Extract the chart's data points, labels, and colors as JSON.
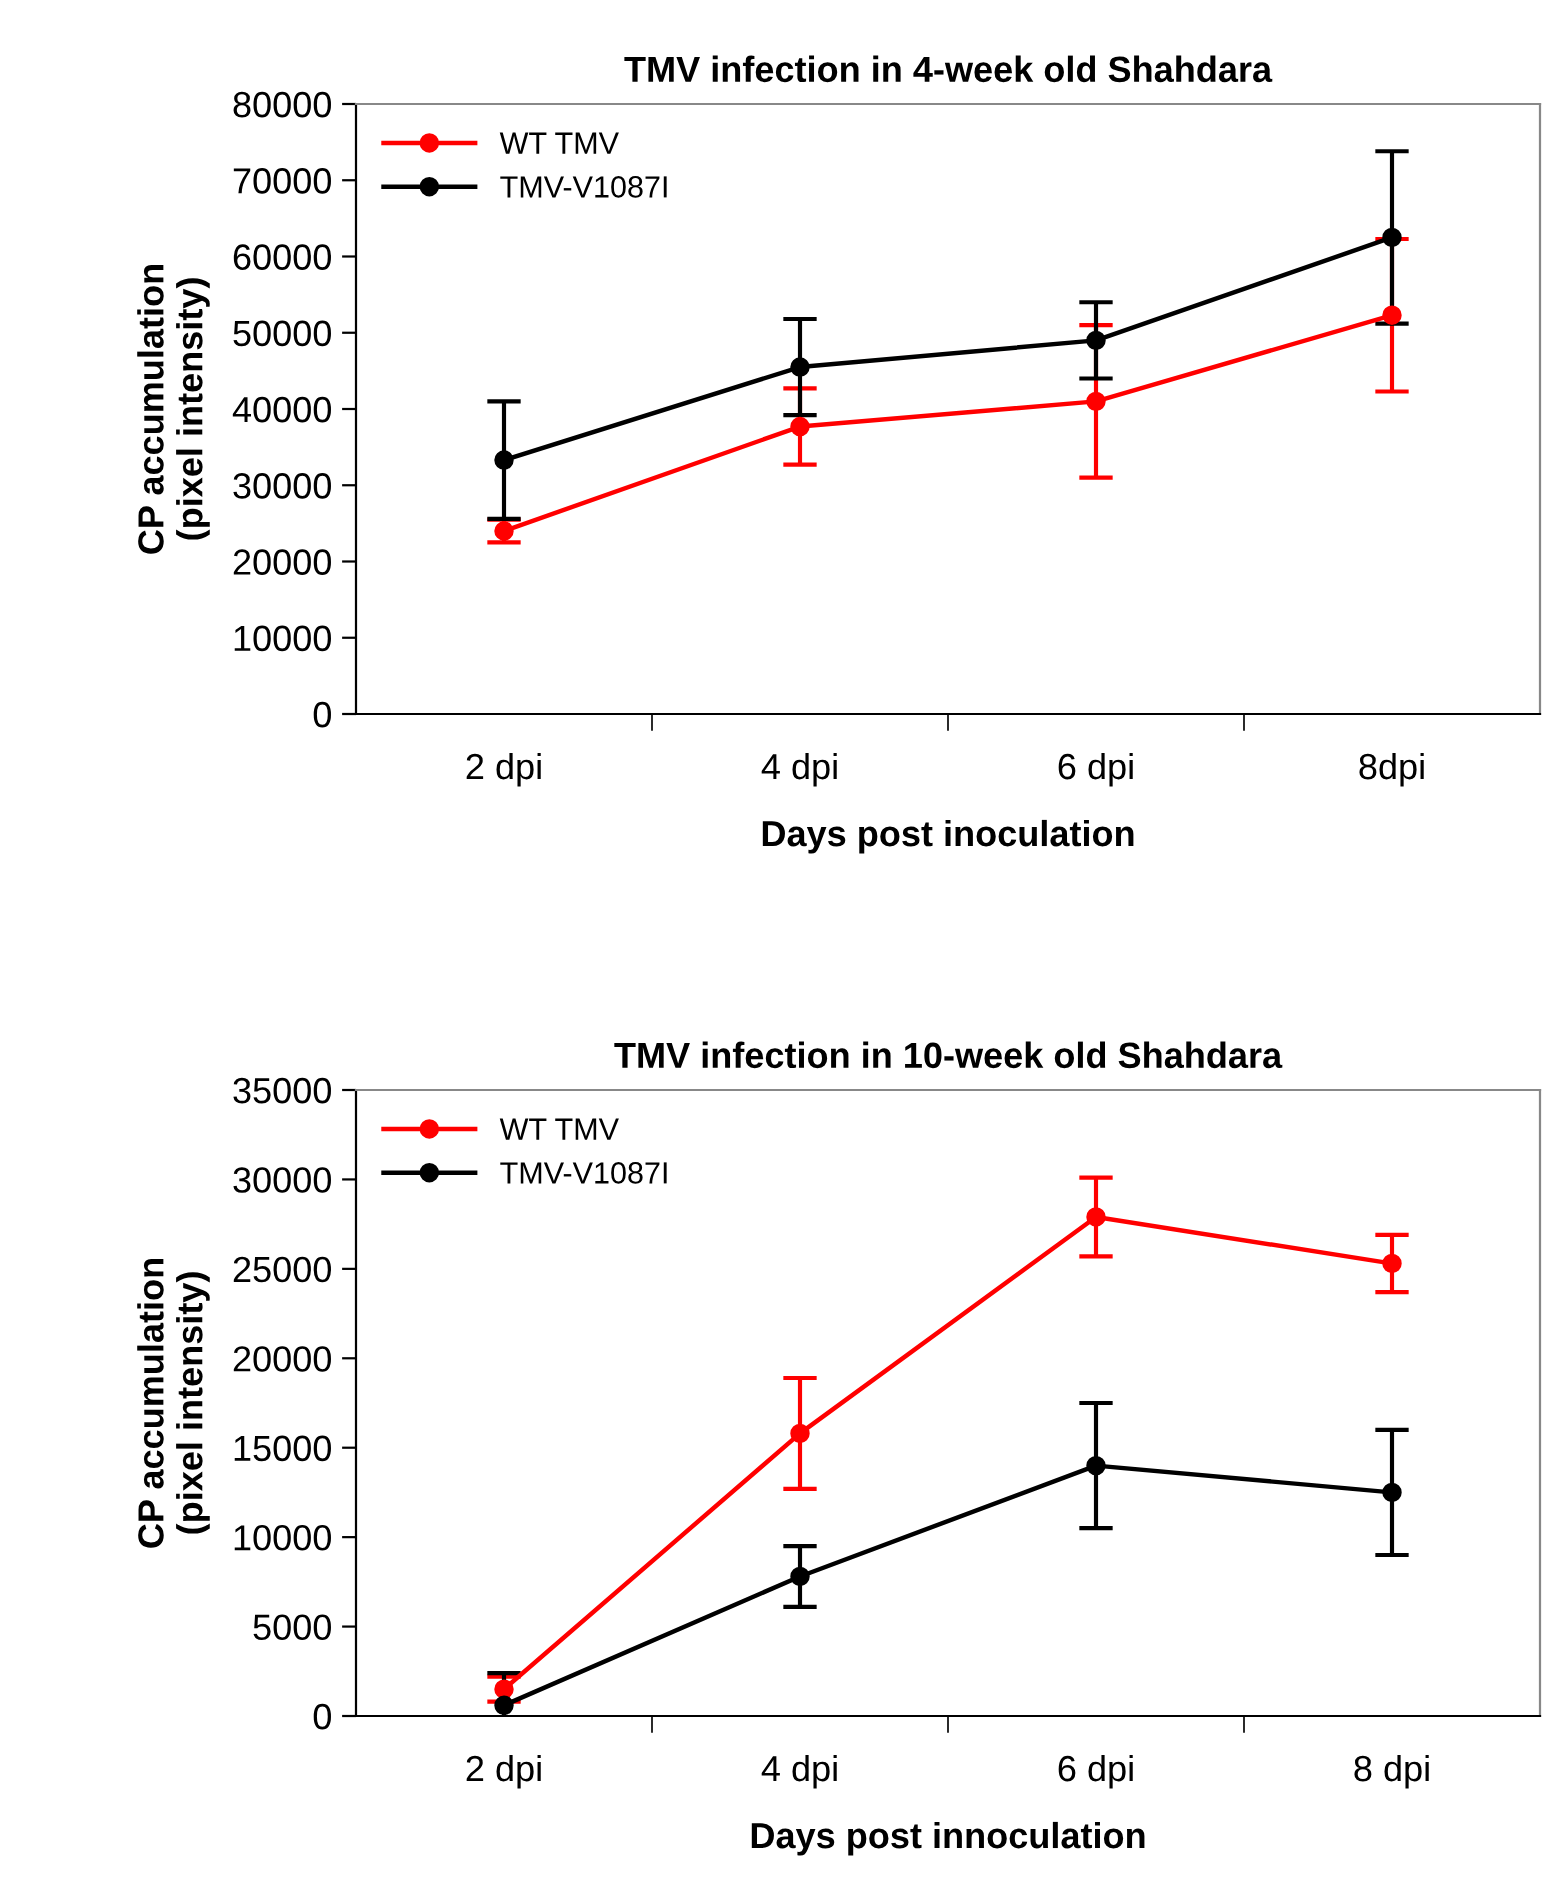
{
  "chart_data": [
    {
      "type": "line",
      "title": "TMV infection in 4-week old Shahdara",
      "xlabel": "Days post inoculation",
      "ylabel": "CP accumulation\n(pixel intensity)",
      "categories": [
        "2 dpi",
        "4 dpi",
        "6 dpi",
        "8dpi"
      ],
      "ylim": [
        0,
        80000
      ],
      "yticks": [
        0,
        10000,
        20000,
        30000,
        40000,
        50000,
        60000,
        70000,
        80000
      ],
      "marker": "circle",
      "legend": "top left",
      "grid": false,
      "series": [
        {
          "name": "WT TMV",
          "color": "#ff0000",
          "values": [
            24000,
            37700,
            41000,
            52300
          ],
          "errors": [
            1500,
            5000,
            10000,
            10000
          ]
        },
        {
          "name": "TMV-V1087I",
          "color": "#000000",
          "values": [
            33300,
            45500,
            49000,
            62500
          ],
          "errors": [
            7700,
            6300,
            5000,
            11300
          ]
        }
      ]
    },
    {
      "type": "line",
      "title": "TMV infection in 10-week old Shahdara",
      "xlabel": "Days post innoculation",
      "ylabel": "CP accumulation\n(pixel intensity)",
      "categories": [
        "2 dpi",
        "4 dpi",
        "6 dpi",
        "8 dpi"
      ],
      "ylim": [
        0,
        35000
      ],
      "yticks": [
        0,
        5000,
        10000,
        15000,
        20000,
        25000,
        30000,
        35000
      ],
      "marker": "circle",
      "legend": "top left",
      "grid": false,
      "series": [
        {
          "name": "WT TMV",
          "color": "#ff0000",
          "values": [
            1500,
            15800,
            27900,
            25300
          ],
          "errors": [
            700,
            3100,
            2200,
            1600
          ]
        },
        {
          "name": "TMV-V1087I",
          "color": "#000000",
          "values": [
            600,
            7800,
            14000,
            12500
          ],
          "errors": [
            1800,
            1700,
            3500,
            3500
          ]
        }
      ]
    }
  ]
}
